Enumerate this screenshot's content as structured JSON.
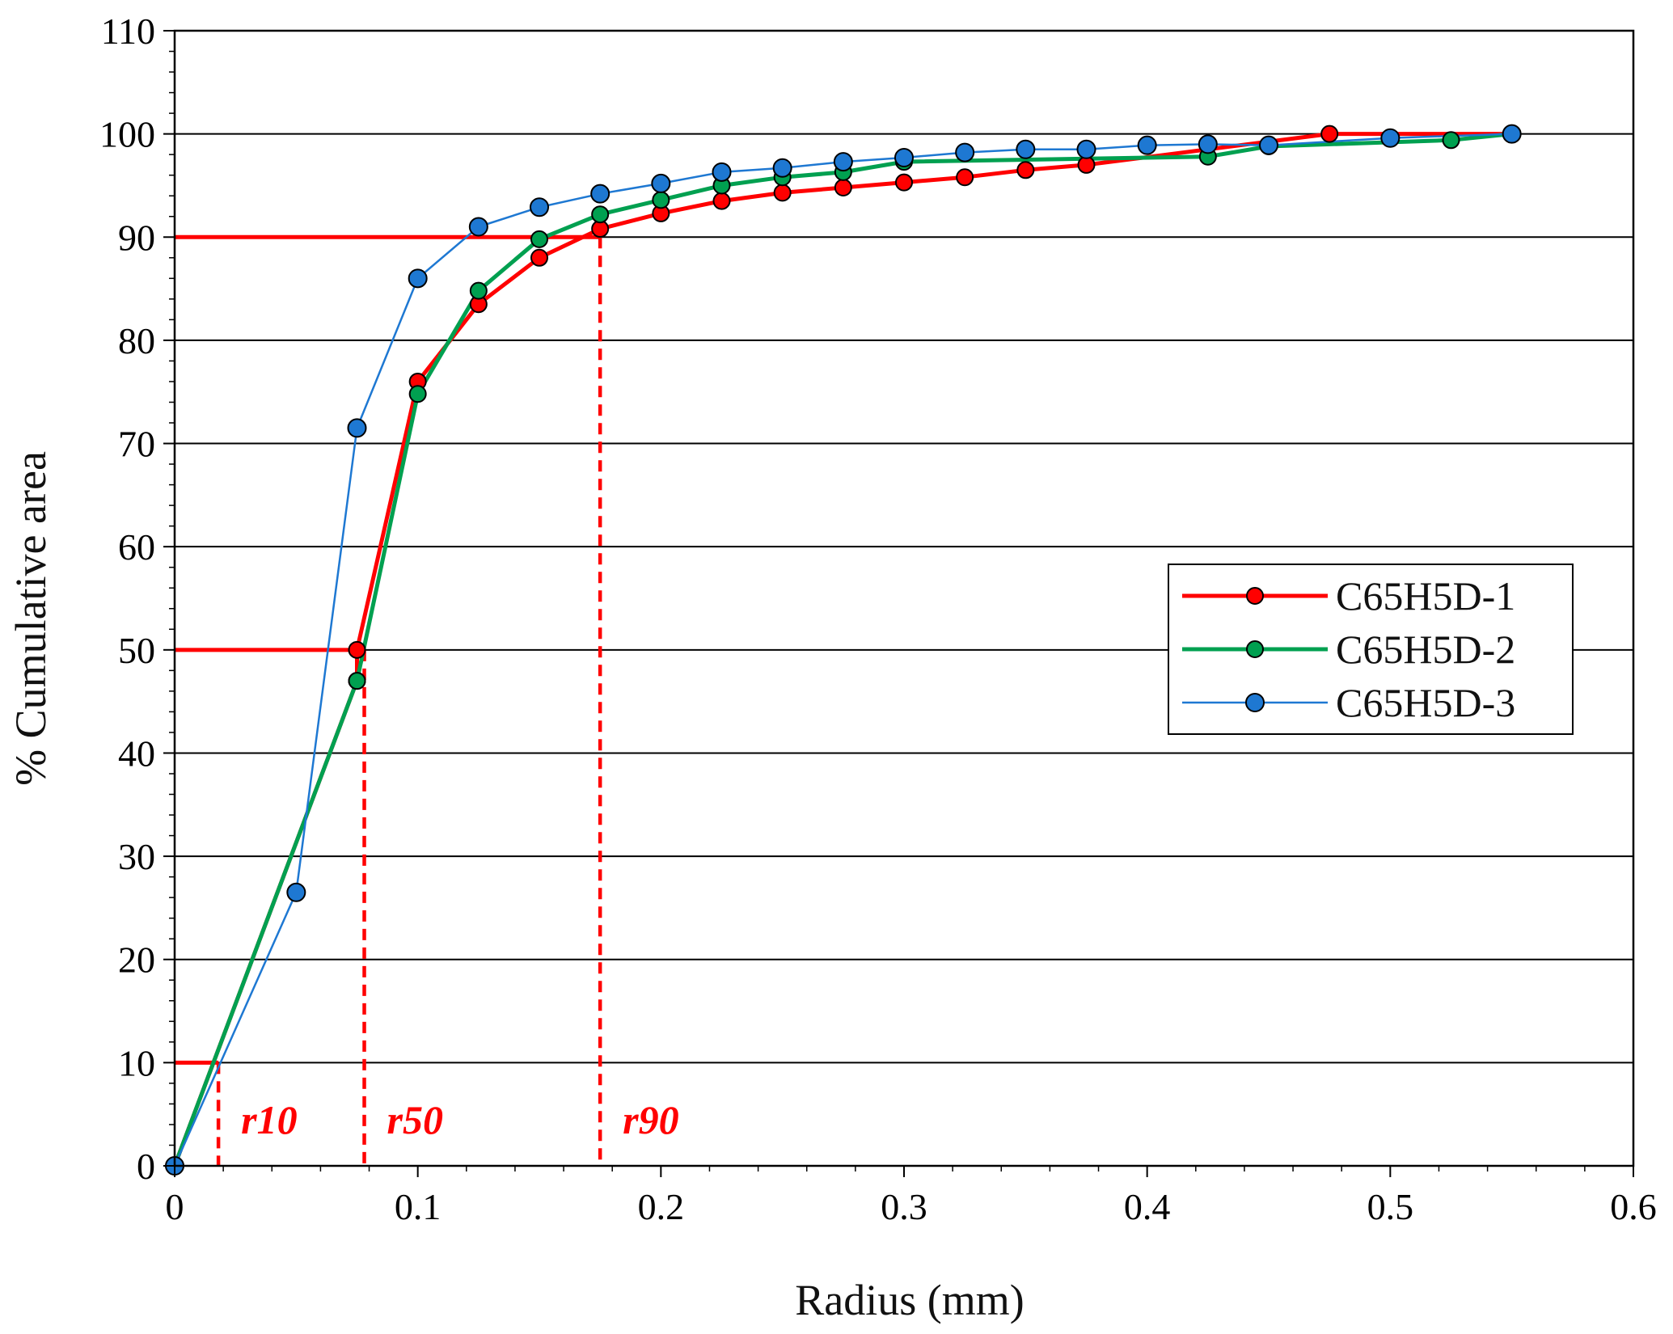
{
  "chart_data": {
    "type": "line",
    "title": "",
    "xlabel": "Radius (mm)",
    "ylabel": "% Cumulative area",
    "xlim": [
      0,
      0.6
    ],
    "ylim": [
      0,
      110
    ],
    "xticks": [
      0,
      0.1,
      0.2,
      0.3,
      0.4,
      0.5,
      0.6
    ],
    "xtick_labels": [
      "0",
      "0.1",
      "0.2",
      "0.3",
      "0.4",
      "0.5",
      "0.6"
    ],
    "yticks": [
      0,
      10,
      20,
      30,
      40,
      50,
      60,
      70,
      80,
      90,
      100,
      110
    ],
    "ytick_labels": [
      "0",
      "10",
      "20",
      "30",
      "40",
      "50",
      "60",
      "70",
      "80",
      "90",
      "100",
      "110"
    ],
    "grid": "horizontal",
    "legend_position": "right-center",
    "series": [
      {
        "name": "C65H5D-1",
        "color": "#ff0000",
        "x": [
          0,
          0.075,
          0.075,
          0.1,
          0.125,
          0.15,
          0.175,
          0.2,
          0.225,
          0.25,
          0.275,
          0.3,
          0.325,
          0.35,
          0.375,
          0.475,
          0.55
        ],
        "y": [
          0,
          47,
          50,
          76,
          83.5,
          88,
          90.8,
          92.3,
          93.5,
          94.3,
          94.8,
          95.3,
          95.8,
          96.5,
          97,
          100,
          100
        ]
      },
      {
        "name": "C65H5D-2",
        "color": "#00a050",
        "x": [
          0,
          0.075,
          0.1,
          0.125,
          0.15,
          0.175,
          0.2,
          0.225,
          0.25,
          0.275,
          0.3,
          0.425,
          0.45,
          0.525,
          0.55
        ],
        "y": [
          0,
          47,
          74.8,
          84.8,
          89.8,
          92.2,
          93.6,
          95,
          95.8,
          96.3,
          97.3,
          97.8,
          98.8,
          99.4,
          100
        ]
      },
      {
        "name": "C65H5D-3",
        "color": "#1e78d2",
        "x": [
          0,
          0.05,
          0.075,
          0.1,
          0.125,
          0.15,
          0.175,
          0.2,
          0.225,
          0.25,
          0.275,
          0.3,
          0.325,
          0.35,
          0.375,
          0.4,
          0.425,
          0.45,
          0.5,
          0.55
        ],
        "y": [
          0,
          26.5,
          71.5,
          86,
          91,
          92.9,
          94.2,
          95.2,
          96.3,
          96.7,
          97.3,
          97.7,
          98.2,
          98.5,
          98.5,
          98.9,
          99,
          98.9,
          99.6,
          100
        ]
      }
    ],
    "reference_lines": [
      {
        "label": "r10",
        "percent": 10,
        "radius": 0.018
      },
      {
        "label": "r50",
        "percent": 50,
        "radius": 0.078
      },
      {
        "label": "r90",
        "percent": 90,
        "radius": 0.175
      }
    ],
    "reference_color": "#ff0000"
  }
}
